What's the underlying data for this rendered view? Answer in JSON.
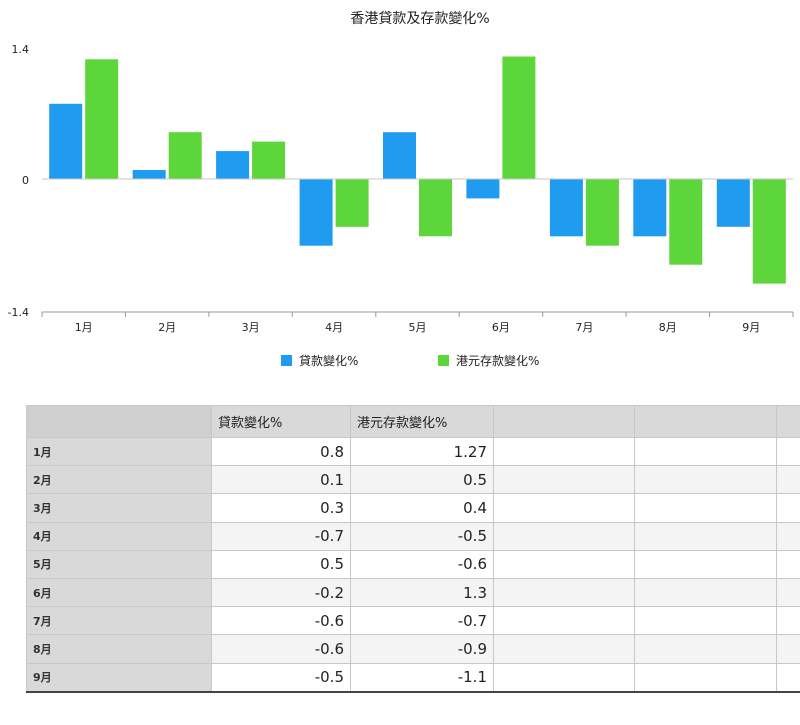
{
  "chart_data": {
    "type": "bar",
    "title": "香港貸款及存款變化%",
    "categories": [
      "1月",
      "2月",
      "3月",
      "4月",
      "5月",
      "6月",
      "7月",
      "8月",
      "9月"
    ],
    "series": [
      {
        "name": "貸款變化%",
        "color": "#1f9cf0",
        "values": [
          0.8,
          0.1,
          0.3,
          -0.7,
          0.5,
          -0.2,
          -0.6,
          -0.6,
          -0.5
        ]
      },
      {
        "name": "港元存款變化%",
        "color": "#5cd63a",
        "values": [
          1.27,
          0.5,
          0.4,
          -0.5,
          -0.6,
          1.3,
          -0.7,
          -0.9,
          -1.1
        ]
      }
    ],
    "ylim": [
      -1.4,
      1.4
    ],
    "yticks": [
      "1.4",
      "0",
      "-1.4"
    ],
    "xlabel": "",
    "ylabel": "",
    "grid": false,
    "legend_position": "bottom"
  },
  "table": {
    "headers": [
      "",
      "貸款變化%",
      "港元存款變化%",
      "",
      "",
      ""
    ],
    "rows": [
      {
        "label": "1月",
        "loan": "0.8",
        "deposit": "1.27"
      },
      {
        "label": "2月",
        "loan": "0.1",
        "deposit": "0.5"
      },
      {
        "label": "3月",
        "loan": "0.3",
        "deposit": "0.4"
      },
      {
        "label": "4月",
        "loan": "-0.7",
        "deposit": "-0.5"
      },
      {
        "label": "5月",
        "loan": "0.5",
        "deposit": "-0.6"
      },
      {
        "label": "6月",
        "loan": "-0.2",
        "deposit": "1.3"
      },
      {
        "label": "7月",
        "loan": "-0.6",
        "deposit": "-0.7"
      },
      {
        "label": "8月",
        "loan": "-0.6",
        "deposit": "-0.9"
      },
      {
        "label": "9月",
        "loan": "-0.5",
        "deposit": "-1.1"
      }
    ]
  }
}
